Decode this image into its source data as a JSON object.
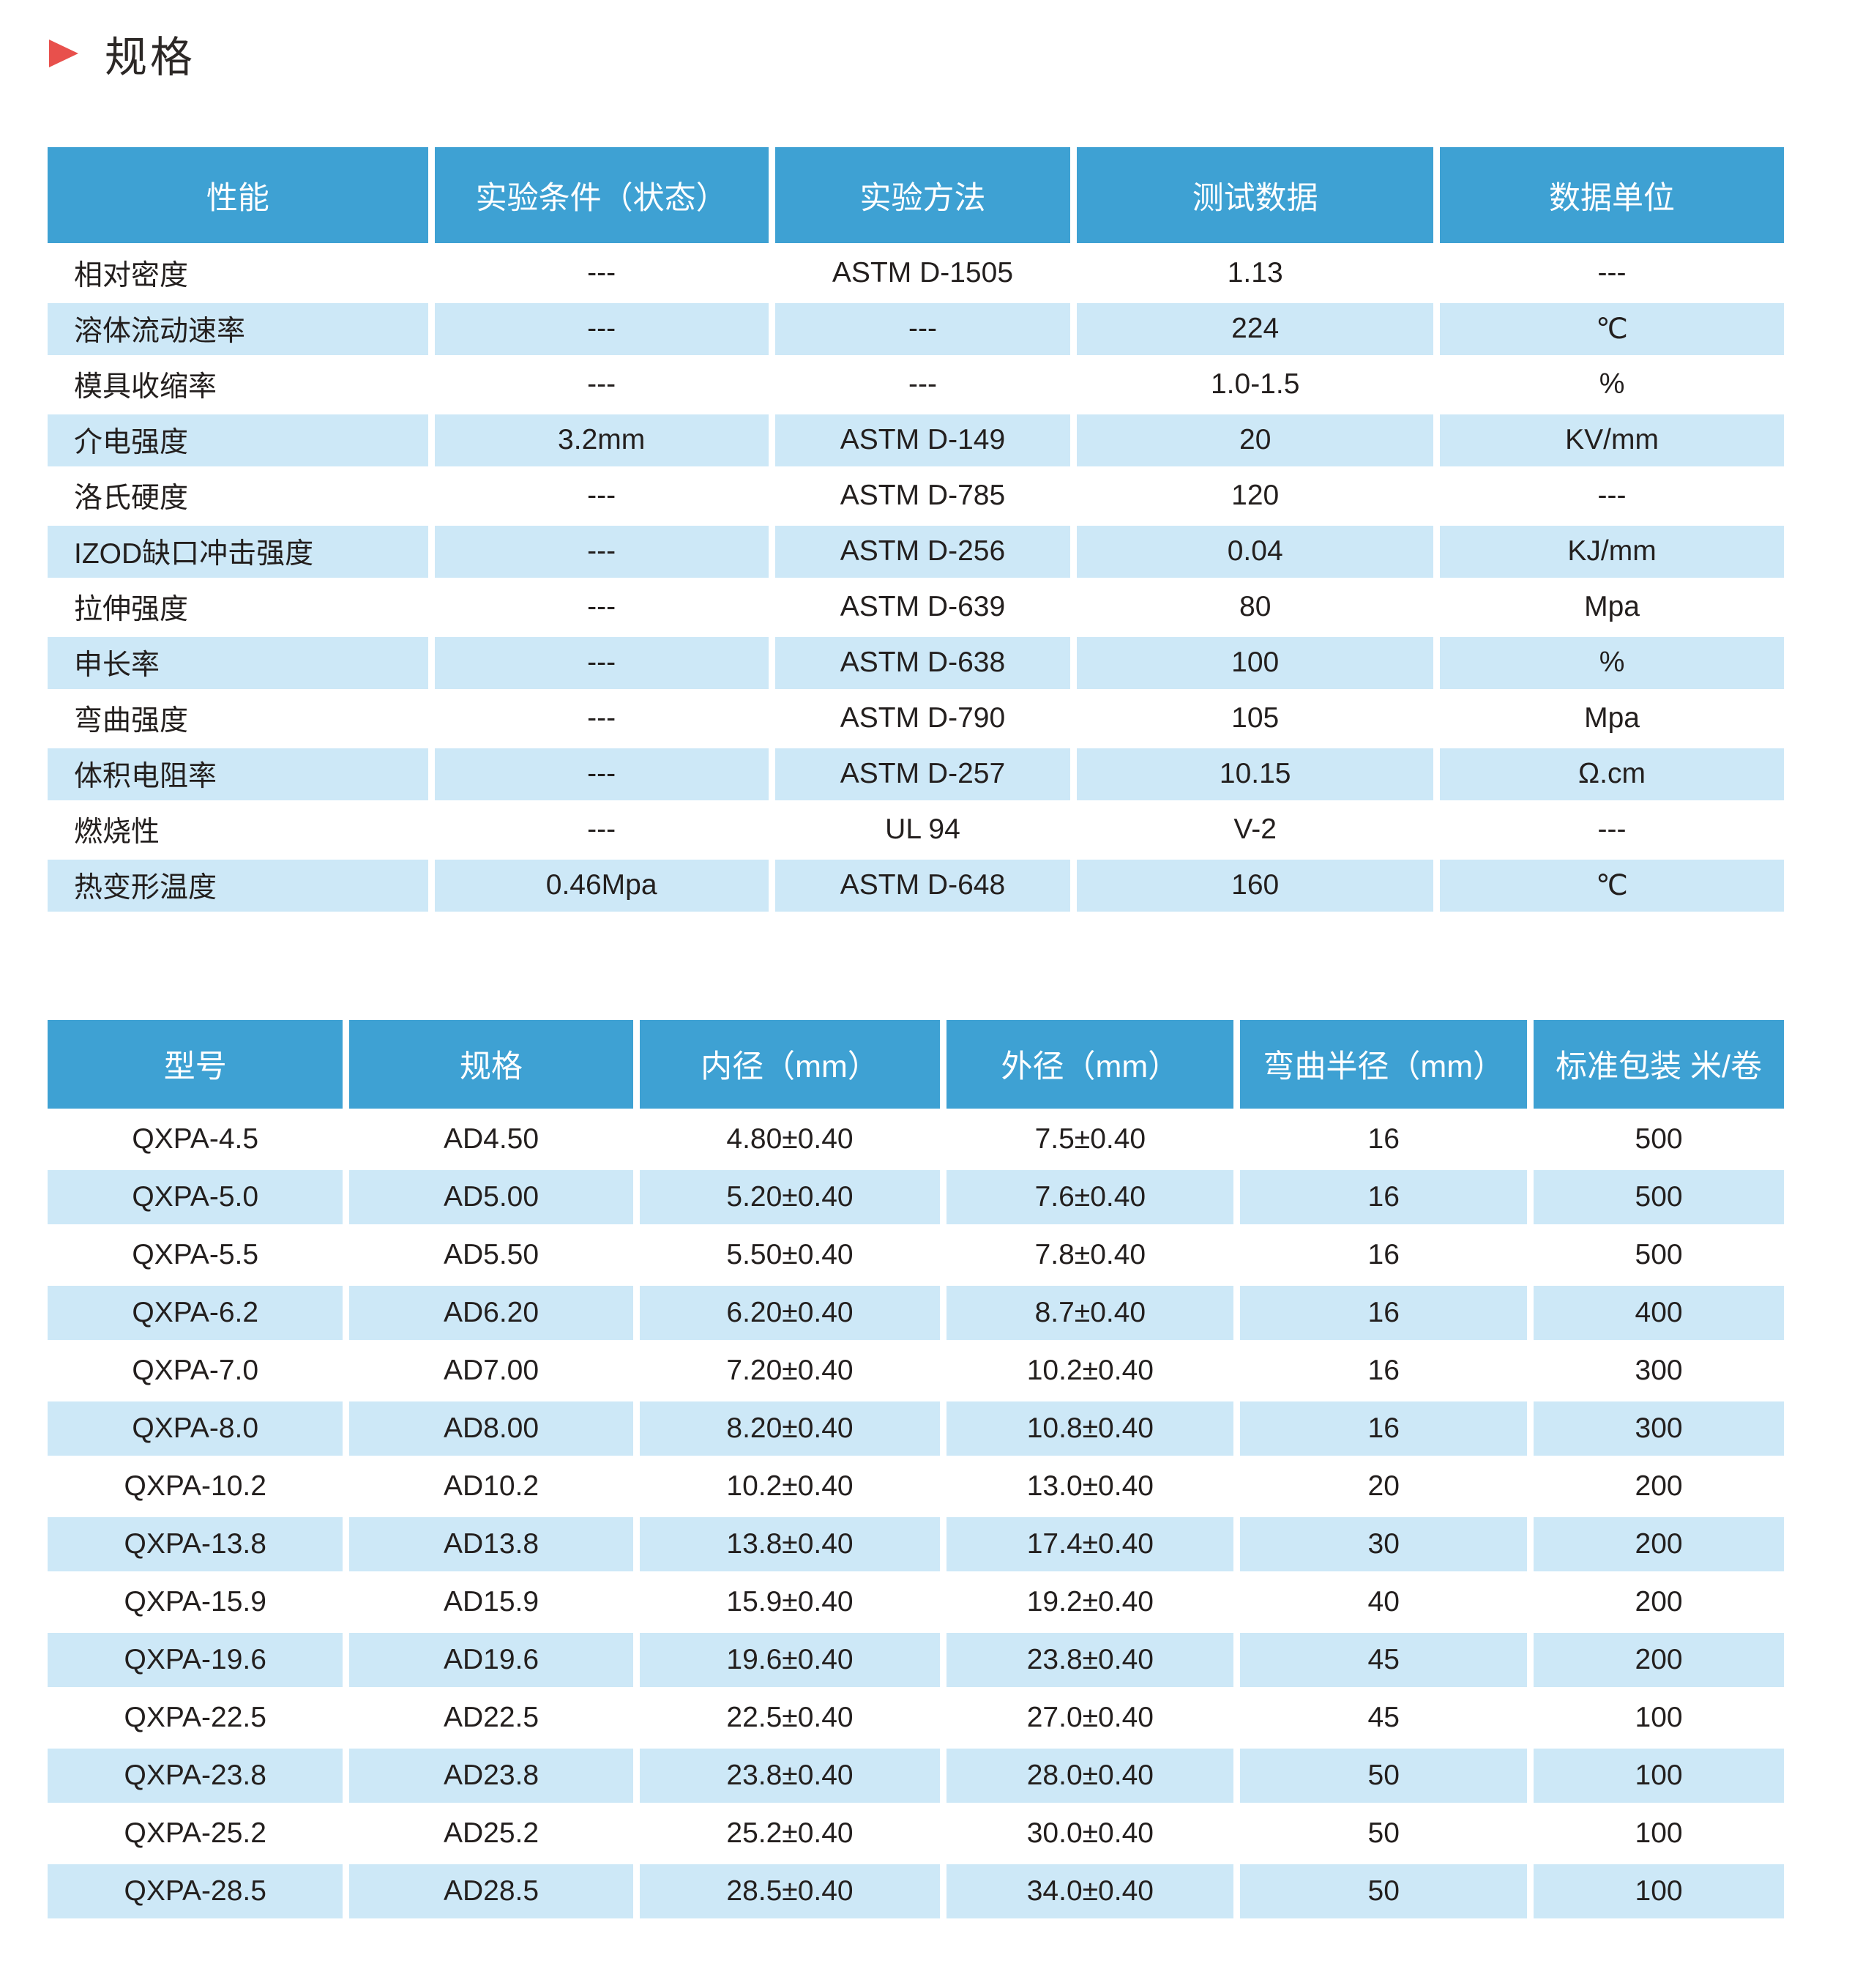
{
  "section": {
    "title": "规格"
  },
  "colors": {
    "header_blue": "#3ea1d3",
    "row_alt_blue": "#cde8f7",
    "accent_red": "#e8504c"
  },
  "properties_table": {
    "headers": [
      "性能",
      "实验条件（状态）",
      "实验方法",
      "测试数据",
      "数据单位"
    ],
    "rows": [
      [
        "相对密度",
        "---",
        "ASTM D-1505",
        "1.13",
        "---"
      ],
      [
        "溶体流动速率",
        "---",
        "---",
        "224",
        "℃"
      ],
      [
        "模具收缩率",
        "---",
        "---",
        "1.0-1.5",
        "%"
      ],
      [
        "介电强度",
        "3.2mm",
        "ASTM D-149",
        "20",
        "KV/mm"
      ],
      [
        "洛氏硬度",
        "---",
        "ASTM D-785",
        "120",
        "---"
      ],
      [
        "IZOD缺口冲击强度",
        "---",
        "ASTM D-256",
        "0.04",
        "KJ/mm"
      ],
      [
        "拉伸强度",
        "---",
        "ASTM D-639",
        "80",
        "Mpa"
      ],
      [
        "申长率",
        "---",
        "ASTM D-638",
        "100",
        "%"
      ],
      [
        "弯曲强度",
        "---",
        "ASTM D-790",
        "105",
        "Mpa"
      ],
      [
        "体积电阻率",
        "---",
        "ASTM D-257",
        "10.15",
        "Ω.cm"
      ],
      [
        "燃烧性",
        "---",
        "UL 94",
        "V-2",
        "---"
      ],
      [
        "热变形温度",
        "0.46Mpa",
        "ASTM D-648",
        "160",
        "℃"
      ]
    ]
  },
  "models_table": {
    "headers": [
      "型号",
      "规格",
      "内径（mm）",
      "外径（mm）",
      "弯曲半径（mm）",
      "标准包装 米/卷"
    ],
    "rows": [
      [
        "QXPA-4.5",
        "AD4.50",
        "4.80±0.40",
        "7.5±0.40",
        "16",
        "500"
      ],
      [
        "QXPA-5.0",
        "AD5.00",
        "5.20±0.40",
        "7.6±0.40",
        "16",
        "500"
      ],
      [
        "QXPA-5.5",
        "AD5.50",
        "5.50±0.40",
        "7.8±0.40",
        "16",
        "500"
      ],
      [
        "QXPA-6.2",
        "AD6.20",
        "6.20±0.40",
        "8.7±0.40",
        "16",
        "400"
      ],
      [
        "QXPA-7.0",
        "AD7.00",
        "7.20±0.40",
        "10.2±0.40",
        "16",
        "300"
      ],
      [
        "QXPA-8.0",
        "AD8.00",
        "8.20±0.40",
        "10.8±0.40",
        "16",
        "300"
      ],
      [
        "QXPA-10.2",
        "AD10.2",
        "10.2±0.40",
        "13.0±0.40",
        "20",
        "200"
      ],
      [
        "QXPA-13.8",
        "AD13.8",
        "13.8±0.40",
        "17.4±0.40",
        "30",
        "200"
      ],
      [
        "QXPA-15.9",
        "AD15.9",
        "15.9±0.40",
        "19.2±0.40",
        "40",
        "200"
      ],
      [
        "QXPA-19.6",
        "AD19.6",
        "19.6±0.40",
        "23.8±0.40",
        "45",
        "200"
      ],
      [
        "QXPA-22.5",
        "AD22.5",
        "22.5±0.40",
        "27.0±0.40",
        "45",
        "100"
      ],
      [
        "QXPA-23.8",
        "AD23.8",
        "23.8±0.40",
        "28.0±0.40",
        "50",
        "100"
      ],
      [
        "QXPA-25.2",
        "AD25.2",
        "25.2±0.40",
        "30.0±0.40",
        "50",
        "100"
      ],
      [
        "QXPA-28.5",
        "AD28.5",
        "28.5±0.40",
        "34.0±0.40",
        "50",
        "100"
      ]
    ]
  }
}
